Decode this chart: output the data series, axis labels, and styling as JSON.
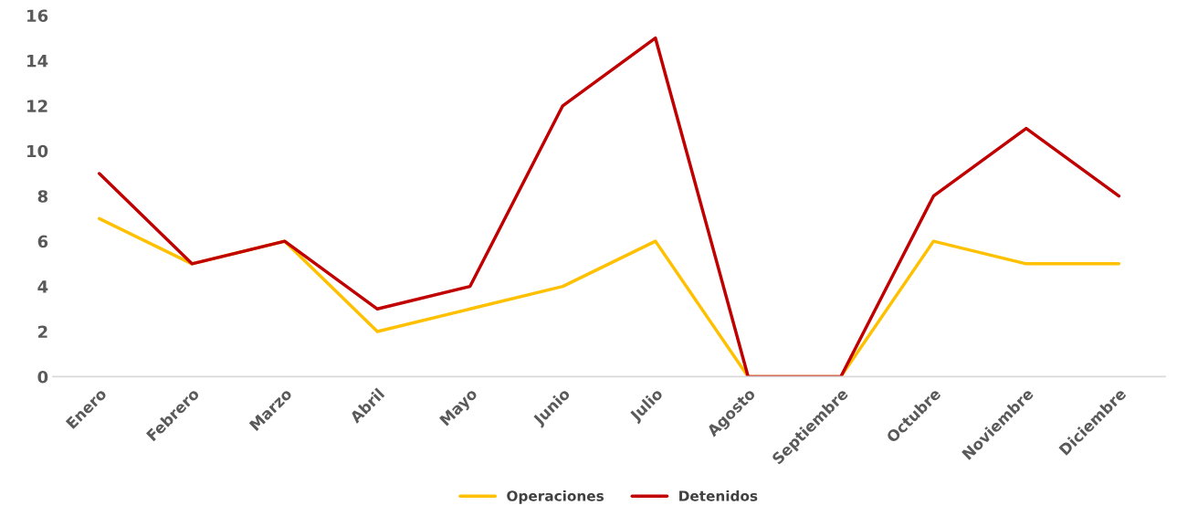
{
  "chart_data": {
    "type": "line",
    "categories": [
      "Enero",
      "Febrero",
      "Marzo",
      "Abril",
      "Mayo",
      "Junio",
      "Julio",
      "Agosto",
      "Septiembre",
      "Octubre",
      "Noviembre",
      "Diciembre"
    ],
    "series": [
      {
        "name": "Operaciones",
        "color": "#ffc000",
        "values": [
          7,
          5,
          6,
          2,
          3,
          4,
          6,
          0,
          0,
          6,
          5,
          5
        ]
      },
      {
        "name": "Detenidos",
        "color": "#c00000",
        "values": [
          9,
          5,
          6,
          3,
          4,
          12,
          15,
          0,
          0,
          8,
          11,
          8
        ]
      }
    ],
    "ylim": [
      0,
      16
    ],
    "yticks": [
      0,
      2,
      4,
      6,
      8,
      10,
      12,
      14,
      16
    ],
    "grid": false,
    "legend": "bottom",
    "marker": "none",
    "line_style": "solid"
  }
}
